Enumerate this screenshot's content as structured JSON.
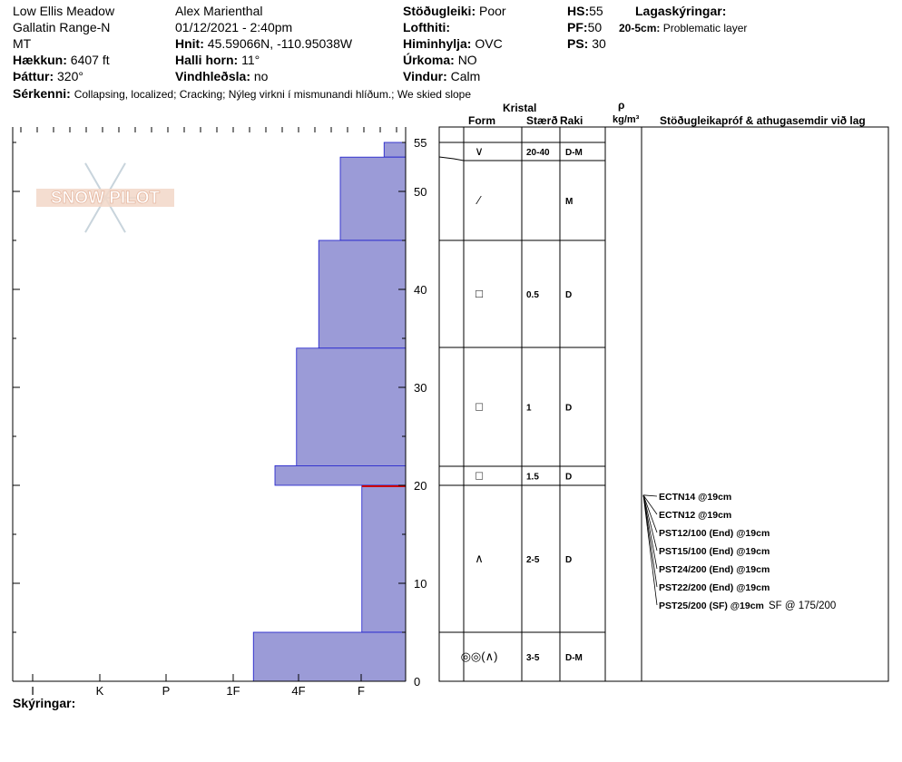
{
  "header": {
    "location": "Low Ellis Meadow",
    "range": "Gallatin Range-N",
    "state": "MT",
    "elevation_label": "Hækkun:",
    "elevation_value": "6407 ft",
    "aspect_label": "Þáttur:",
    "aspect_value": "320°",
    "observer": "Alex Marienthal",
    "datetime": "01/12/2021 - 2:40pm",
    "coords_label": "Hnit:",
    "coords_value": "45.59066N, -110.95038W",
    "slope_label": "Halli horn:",
    "slope_value": "11°",
    "windload_label": "Vindhleðsla:",
    "windload_value": "no",
    "stability_label": "Stöðugleiki:",
    "stability_value": "Poor",
    "airtemp_label": "Lofthiti:",
    "airtemp_value": "",
    "sky_label": "Himinhylja:",
    "sky_value": "OVC",
    "precip_label": "Úrkoma:",
    "precip_value": "NO",
    "wind_label": "Vindur:",
    "wind_value": "Calm",
    "hs_label": "HS:",
    "hs_value": "55",
    "pf_label": "PF:",
    "pf_value": "50",
    "ps_label": "PS:",
    "ps_value": "30",
    "layer_notes_label": "Lagaskýringar:",
    "layer_note_range": "20-5cm:",
    "layer_note_text": "Problematic layer",
    "features_label": "Sérkenni:",
    "features_value": "Collapsing, localized;  Cracking;  Nýleg virkni í mismunandi hlíðum.;  We skied slope"
  },
  "columns": {
    "crystal_label": "Kristal",
    "form_label": "Form",
    "size_label": "Stærð",
    "moisture_label": "Raki",
    "density_symbol": "ρ",
    "density_unit": "kg/m³",
    "tests_label": "Stöðugleikapróf & athugasemdir við lag"
  },
  "footer": {
    "notes_label": "Skýringar:"
  },
  "logo_text": "SNOW PILOT",
  "colors": {
    "layer_fill": "#9b9bd7",
    "layer_edge": "#1a1acc",
    "problem_line": "#cc0000"
  },
  "chart_data": {
    "type": "bar",
    "orientation": "horizontal",
    "y_axis": {
      "ticks": [
        0,
        10,
        20,
        30,
        40,
        50,
        55
      ],
      "ylim": [
        0,
        56.5
      ]
    },
    "x_axis": {
      "categories": [
        "I",
        "K",
        "P",
        "1F",
        "4F",
        "F"
      ]
    },
    "hardness_layers": [
      {
        "top": 55,
        "bottom": 53.5,
        "hardness": 0.33
      },
      {
        "top": 53.5,
        "bottom": 45,
        "hardness": 1.0
      },
      {
        "top": 45,
        "bottom": 34,
        "hardness": 1.33
      },
      {
        "top": 34,
        "bottom": 22,
        "hardness": 1.67
      },
      {
        "top": 22,
        "bottom": 20,
        "hardness": 2.0
      },
      {
        "top": 20,
        "bottom": 5,
        "hardness": 0.67
      },
      {
        "top": 5,
        "bottom": 0,
        "hardness": 2.33
      }
    ],
    "problem_layer_depth": 20,
    "layers": [
      {
        "top": 55,
        "bottom": 53.5,
        "form": "",
        "size": "",
        "moisture": ""
      },
      {
        "top": 53.5,
        "bottom": 45,
        "form": "∨",
        "size": "20-40",
        "moisture": "D-M"
      },
      {
        "top": 45,
        "bottom": 34,
        "form": "⁄",
        "size": "",
        "moisture": "M"
      },
      {
        "top": 34,
        "bottom": 22,
        "form": "□",
        "size": "0.5",
        "moisture": "D"
      },
      {
        "top": 22,
        "bottom": 20,
        "form": "□",
        "size": "1",
        "moisture": "D"
      },
      {
        "top": 20,
        "bottom": 5,
        "form": "□",
        "size": "1.5",
        "moisture": "D"
      },
      {
        "top": 5,
        "bottom": 0,
        "form": "∧",
        "size": "2-5",
        "moisture": "D"
      }
    ],
    "bottom_layer": {
      "form": "◎◎(∧)",
      "size": "3-5",
      "moisture": "D-M"
    },
    "tests": [
      {
        "text": "ECTN14 @19cm",
        "extra": ""
      },
      {
        "text": "ECTN12 @19cm",
        "extra": ""
      },
      {
        "text": "PST12/100 (End) @19cm",
        "extra": ""
      },
      {
        "text": "PST15/100 (End) @19cm",
        "extra": ""
      },
      {
        "text": "PST24/200 (End) @19cm",
        "extra": ""
      },
      {
        "text": "PST22/200 (End) @19cm",
        "extra": ""
      },
      {
        "text": "PST25/200 (SF) @19cm",
        "extra": "SF @ 175/200"
      }
    ],
    "test_depth": 19
  }
}
